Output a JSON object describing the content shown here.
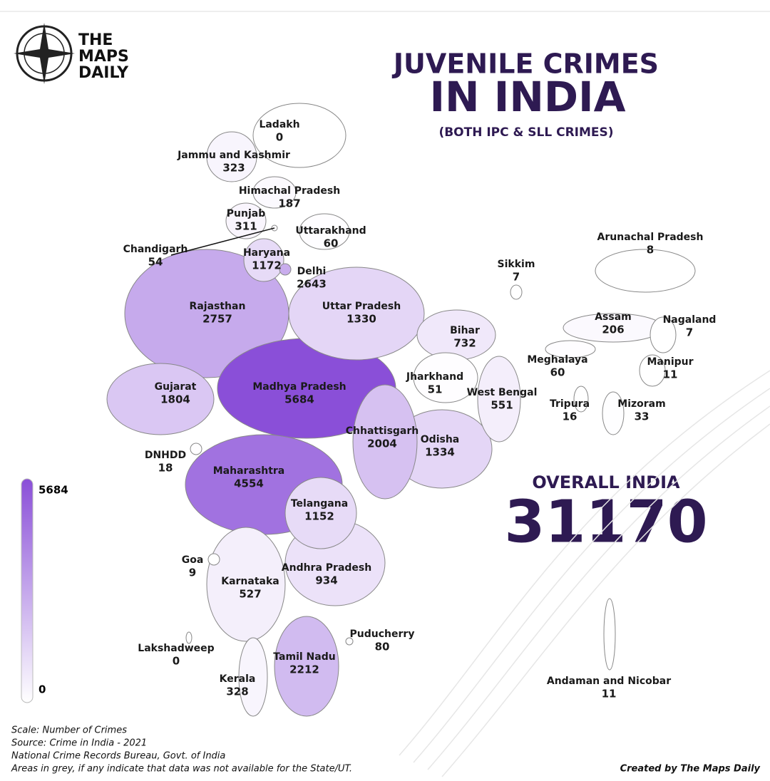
{
  "brand": [
    "THE",
    "MAPS",
    "DAILY"
  ],
  "title": "JUVENILE CRIMES",
  "title_line2": "IN INDIA",
  "subtitle": "(BOTH IPC & SLL CRIMES)",
  "overall": {
    "label": "OVERALL INDIA",
    "value": 31170
  },
  "legend": {
    "min": 0,
    "max": 5684,
    "low_color": "#ffffff",
    "high_color": "#8a4fd8"
  },
  "regions": [
    {
      "name": "Ladakh",
      "value": 0
    },
    {
      "name": "Jammu and Kashmir",
      "value": 323
    },
    {
      "name": "Himachal Pradesh",
      "value": 187
    },
    {
      "name": "Punjab",
      "value": 311
    },
    {
      "name": "Uttarakhand",
      "value": 60
    },
    {
      "name": "Chandigarh",
      "value": 54
    },
    {
      "name": "Haryana",
      "value": 1172
    },
    {
      "name": "Delhi",
      "value": 2643
    },
    {
      "name": "Arunachal Pradesh",
      "value": 8
    },
    {
      "name": "Sikkim",
      "value": 7
    },
    {
      "name": "Rajasthan",
      "value": 2757
    },
    {
      "name": "Uttar Pradesh",
      "value": 1330
    },
    {
      "name": "Bihar",
      "value": 732
    },
    {
      "name": "Assam",
      "value": 206
    },
    {
      "name": "Nagaland",
      "value": 7
    },
    {
      "name": "Meghalaya",
      "value": 60
    },
    {
      "name": "Manipur",
      "value": 11
    },
    {
      "name": "Jharkhand",
      "value": 51
    },
    {
      "name": "West Bengal",
      "value": 551
    },
    {
      "name": "Gujarat",
      "value": 1804
    },
    {
      "name": "Madhya Pradesh",
      "value": 5684
    },
    {
      "name": "Tripura",
      "value": 16
    },
    {
      "name": "Mizoram",
      "value": 33
    },
    {
      "name": "Chhattisgarh",
      "value": 2004
    },
    {
      "name": "Odisha",
      "value": 1334
    },
    {
      "name": "DNHDD",
      "value": 18
    },
    {
      "name": "Maharashtra",
      "value": 4554
    },
    {
      "name": "Telangana",
      "value": 1152
    },
    {
      "name": "Goa",
      "value": 9
    },
    {
      "name": "Andhra Pradesh",
      "value": 934
    },
    {
      "name": "Karnataka",
      "value": 527
    },
    {
      "name": "Puducherry",
      "value": 80
    },
    {
      "name": "Lakshadweep",
      "value": 0
    },
    {
      "name": "Tamil Nadu",
      "value": 2212
    },
    {
      "name": "Kerala",
      "value": 328
    },
    {
      "name": "Andaman and Nicobar",
      "value": 11
    }
  ],
  "footnotes": [
    "Scale: Number of Crimes",
    "Source: Crime in India - 2021",
    "National Crime Records Bureau, Govt. of India",
    "Areas in grey, if any indicate that data was not available for the State/UT."
  ],
  "credit": "Created by The Maps Daily"
}
